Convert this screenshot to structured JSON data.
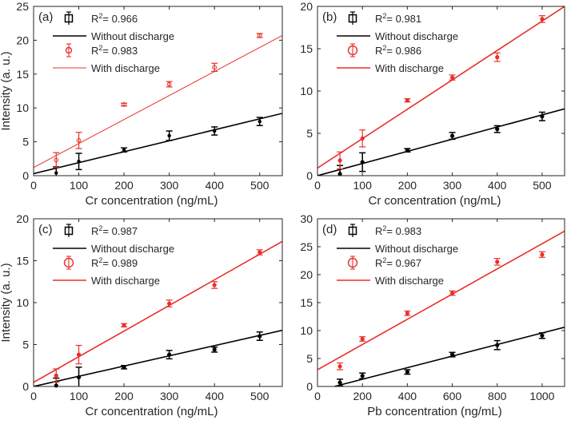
{
  "chart_data": [
    {
      "type": "scatter",
      "panel_label": "(a)",
      "xlabel": "Cr concentration (ng/mL)",
      "ylabel": "Intensity (a. u.)",
      "xlim": [
        0,
        550
      ],
      "ylim": [
        0,
        25
      ],
      "xticks": [
        0,
        100,
        200,
        300,
        400,
        500
      ],
      "xtick_labels": [
        "0",
        "100",
        "200",
        "300",
        "400",
        "500"
      ],
      "yticks": [
        0,
        5,
        10,
        15,
        20,
        25
      ],
      "ytick_labels": [
        "0",
        "5",
        "10",
        "15",
        "20",
        "25"
      ],
      "marker_style": "small",
      "series": [
        {
          "name": "Without discharge",
          "r2": "R2= 0.966",
          "color": "#000000",
          "x": [
            50,
            100,
            200,
            300,
            400,
            500
          ],
          "y": [
            0.4,
            2.1,
            3.8,
            5.9,
            6.6,
            8.0
          ],
          "err": [
            0.9,
            1.2,
            0.3,
            0.7,
            0.6,
            0.6
          ],
          "fit": [
            [
              0,
              0.3
            ],
            [
              550,
              9.2
            ]
          ]
        },
        {
          "name": "With discharge",
          "r2": "R2= 0.983",
          "color": "#e8302a",
          "x": [
            50,
            100,
            200,
            300,
            400,
            500
          ],
          "y": [
            2.3,
            5.2,
            10.5,
            13.5,
            16.0,
            20.7
          ],
          "err": [
            1.1,
            1.2,
            0.2,
            0.4,
            0.6,
            0.3
          ],
          "fit": [
            [
              0,
              1.2
            ],
            [
              550,
              20.7
            ]
          ]
        }
      ]
    },
    {
      "type": "scatter",
      "panel_label": "(b)",
      "xlabel": "Cr concentration (ng/mL)",
      "ylabel": "",
      "xlim": [
        0,
        550
      ],
      "ylim": [
        0,
        20
      ],
      "xticks": [
        0,
        100,
        200,
        300,
        400,
        500
      ],
      "xtick_labels": [
        "0",
        "100",
        "200",
        "300",
        "400",
        "500"
      ],
      "yticks": [
        0,
        5,
        10,
        15,
        20
      ],
      "ytick_labels": [
        "0",
        "5",
        "10",
        "15",
        "20"
      ],
      "marker_style": "large",
      "series": [
        {
          "name": "Without discharge",
          "r2": "R2= 0.981",
          "color": "#000000",
          "x": [
            50,
            100,
            200,
            300,
            400,
            500
          ],
          "y": [
            0.2,
            1.6,
            3.0,
            4.7,
            5.5,
            7.0
          ],
          "err": [
            1.0,
            1.1,
            0.2,
            0.4,
            0.4,
            0.5
          ],
          "fit": [
            [
              0,
              0.0
            ],
            [
              550,
              7.9
            ]
          ]
        },
        {
          "name": "With discharge",
          "r2": "R2= 0.986",
          "color": "#e8302a",
          "x": [
            50,
            100,
            200,
            300,
            400,
            500
          ],
          "y": [
            1.8,
            4.4,
            8.9,
            11.6,
            14.0,
            18.5
          ],
          "err": [
            1.0,
            1.0,
            0.2,
            0.3,
            0.5,
            0.4
          ],
          "fit": [
            [
              0,
              0.9
            ],
            [
              550,
              20.0
            ]
          ]
        }
      ]
    },
    {
      "type": "scatter",
      "panel_label": "(c)",
      "xlabel": "Cr concentration (ng/mL)",
      "ylabel": "Intensity (a. u.)",
      "xlim": [
        0,
        550
      ],
      "ylim": [
        0,
        20
      ],
      "xticks": [
        0,
        100,
        200,
        300,
        400,
        500
      ],
      "xtick_labels": [
        "0",
        "100",
        "200",
        "300",
        "400",
        "500"
      ],
      "yticks": [
        0,
        5,
        10,
        15,
        20
      ],
      "ytick_labels": [
        "0",
        "5",
        "10",
        "15",
        "20"
      ],
      "marker_style": "large",
      "series": [
        {
          "name": "Without discharge",
          "r2": "R2= 0.987",
          "color": "#000000",
          "x": [
            50,
            100,
            200,
            300,
            400,
            500
          ],
          "y": [
            0.1,
            1.1,
            2.3,
            3.8,
            4.4,
            6.0
          ],
          "err": [
            0.9,
            1.2,
            0.2,
            0.5,
            0.3,
            0.5
          ],
          "fit": [
            [
              0,
              0.0
            ],
            [
              550,
              6.7
            ]
          ]
        },
        {
          "name": "With discharge",
          "r2": "R2= 0.989",
          "color": "#e8302a",
          "x": [
            50,
            100,
            200,
            300,
            400,
            500
          ],
          "y": [
            1.3,
            3.8,
            7.3,
            9.9,
            12.1,
            16.0
          ],
          "err": [
            0.8,
            1.1,
            0.2,
            0.4,
            0.4,
            0.3
          ],
          "fit": [
            [
              0,
              0.5
            ],
            [
              550,
              17.3
            ]
          ]
        }
      ]
    },
    {
      "type": "scatter",
      "panel_label": "(d)",
      "xlabel": "Pb concentration (ng/mL)",
      "ylabel": "",
      "xlim": [
        0,
        1100
      ],
      "ylim": [
        0,
        30
      ],
      "xticks": [
        0,
        200,
        400,
        600,
        800,
        1000
      ],
      "xtick_labels": [
        "0",
        "200",
        "400",
        "600",
        "800",
        "1000"
      ],
      "yticks": [
        0,
        5,
        10,
        15,
        20,
        25,
        30
      ],
      "ytick_labels": [
        "0",
        "5",
        "10",
        "15",
        "20",
        "25",
        "30"
      ],
      "marker_style": "large",
      "series": [
        {
          "name": "Without discharge",
          "r2": "R2= 0.983",
          "color": "#000000",
          "x": [
            100,
            200,
            400,
            600,
            800,
            1000
          ],
          "y": [
            0.7,
            1.9,
            2.6,
            5.7,
            7.4,
            9.1
          ],
          "err": [
            0.6,
            0.5,
            0.4,
            0.4,
            0.8,
            0.5
          ],
          "fit": [
            [
              75,
              0.0
            ],
            [
              1100,
              10.6
            ]
          ]
        },
        {
          "name": "With discharge",
          "r2": "R2= 0.967",
          "color": "#e8302a",
          "x": [
            100,
            200,
            400,
            600,
            800,
            1000
          ],
          "y": [
            3.6,
            8.5,
            13.1,
            16.7,
            22.3,
            23.6
          ],
          "err": [
            0.6,
            0.4,
            0.4,
            0.4,
            0.6,
            0.5
          ],
          "fit": [
            [
              0,
              3.0
            ],
            [
              1100,
              27.8
            ]
          ]
        }
      ]
    }
  ]
}
